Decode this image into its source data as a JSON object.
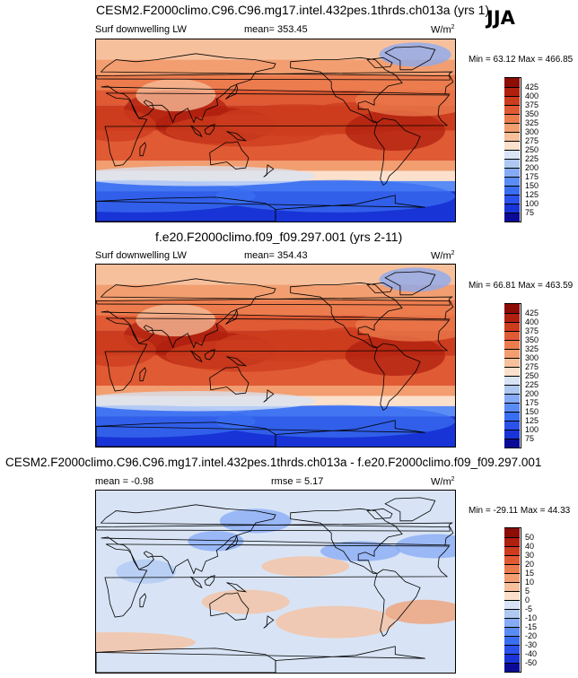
{
  "season": "JJA",
  "colors": {
    "abs_scale": [
      "#0a0a96",
      "#1834d6",
      "#2a52ea",
      "#3a6ef0",
      "#5b8cf5",
      "#86aaf5",
      "#afc8f2",
      "#d8e4f5",
      "#fbe0cc",
      "#f7c09c",
      "#f29e70",
      "#ec7c4e",
      "#e05a34",
      "#cc3c1e",
      "#b0200f",
      "#8c0c06"
    ],
    "diff_scale": [
      "#0a0a96",
      "#1834d6",
      "#2a52ea",
      "#3a6ef0",
      "#5b8cf5",
      "#86aaf5",
      "#afc8f2",
      "#d8e4f5",
      "#fbe0cc",
      "#f7c09c",
      "#f29e70",
      "#ec7c4e",
      "#e05a34",
      "#cc3c1e",
      "#b0200f",
      "#8c0c06"
    ]
  },
  "chart_data": [
    {
      "type": "heatmap",
      "title": "CESM2.F2000climo.C96.C96.mg17.intel.432pes.1thrds.ch013a (yrs 1)",
      "variable": "Surf downwelling LW",
      "mean_label": "mean= 353.45",
      "units": "W/m",
      "units_sup": "2",
      "minmax": "Min =  63.12 Max = 466.85",
      "colorbar": {
        "levels": [
          "425",
          "400",
          "375",
          "350",
          "325",
          "300",
          "275",
          "250",
          "225",
          "200",
          "175",
          "150",
          "125",
          "100",
          "75"
        ],
        "colors": [
          "#8c0c06",
          "#b0200f",
          "#cc3c1e",
          "#e05a34",
          "#ec7c4e",
          "#f29e70",
          "#f7c09c",
          "#fbe0cc",
          "#d8e4f5",
          "#afc8f2",
          "#86aaf5",
          "#5b8cf5",
          "#3a6ef0",
          "#2a52ea",
          "#1834d6",
          "#0a0a96"
        ]
      }
    },
    {
      "type": "heatmap",
      "title": "f.e20.F2000climo.f09_f09.297.001 (yrs 2-11)",
      "variable": "Surf downwelling LW",
      "mean_label": "mean= 354.43",
      "units": "W/m",
      "units_sup": "2",
      "minmax": "Min =  66.81 Max = 463.59",
      "colorbar": {
        "levels": [
          "425",
          "400",
          "375",
          "350",
          "325",
          "300",
          "275",
          "250",
          "225",
          "200",
          "175",
          "150",
          "125",
          "100",
          "75"
        ],
        "colors": [
          "#8c0c06",
          "#b0200f",
          "#cc3c1e",
          "#e05a34",
          "#ec7c4e",
          "#f29e70",
          "#f7c09c",
          "#fbe0cc",
          "#d8e4f5",
          "#afc8f2",
          "#86aaf5",
          "#5b8cf5",
          "#3a6ef0",
          "#2a52ea",
          "#1834d6",
          "#0a0a96"
        ]
      }
    },
    {
      "type": "heatmap",
      "title": "CESM2.F2000climo.C96.C96.mg17.intel.432pes.1thrds.ch013a - f.e20.F2000climo.f09_f09.297.001",
      "mean_label": "mean =  -0.98",
      "rmse_label": "rmse =   5.17",
      "units": "W/m",
      "units_sup": "2",
      "minmax": "Min = -29.11 Max =  44.33",
      "colorbar": {
        "levels": [
          "50",
          "40",
          "30",
          "20",
          "15",
          "10",
          "5",
          "0",
          "-5",
          "-10",
          "-15",
          "-20",
          "-30",
          "-40",
          "-50"
        ],
        "colors": [
          "#8c0c06",
          "#b0200f",
          "#cc3c1e",
          "#e05a34",
          "#ec7c4e",
          "#f29e70",
          "#f7c09c",
          "#fbe0cc",
          "#d8e4f5",
          "#afc8f2",
          "#86aaf5",
          "#5b8cf5",
          "#3a6ef0",
          "#2a52ea",
          "#1834d6",
          "#0a0a96"
        ]
      }
    }
  ]
}
